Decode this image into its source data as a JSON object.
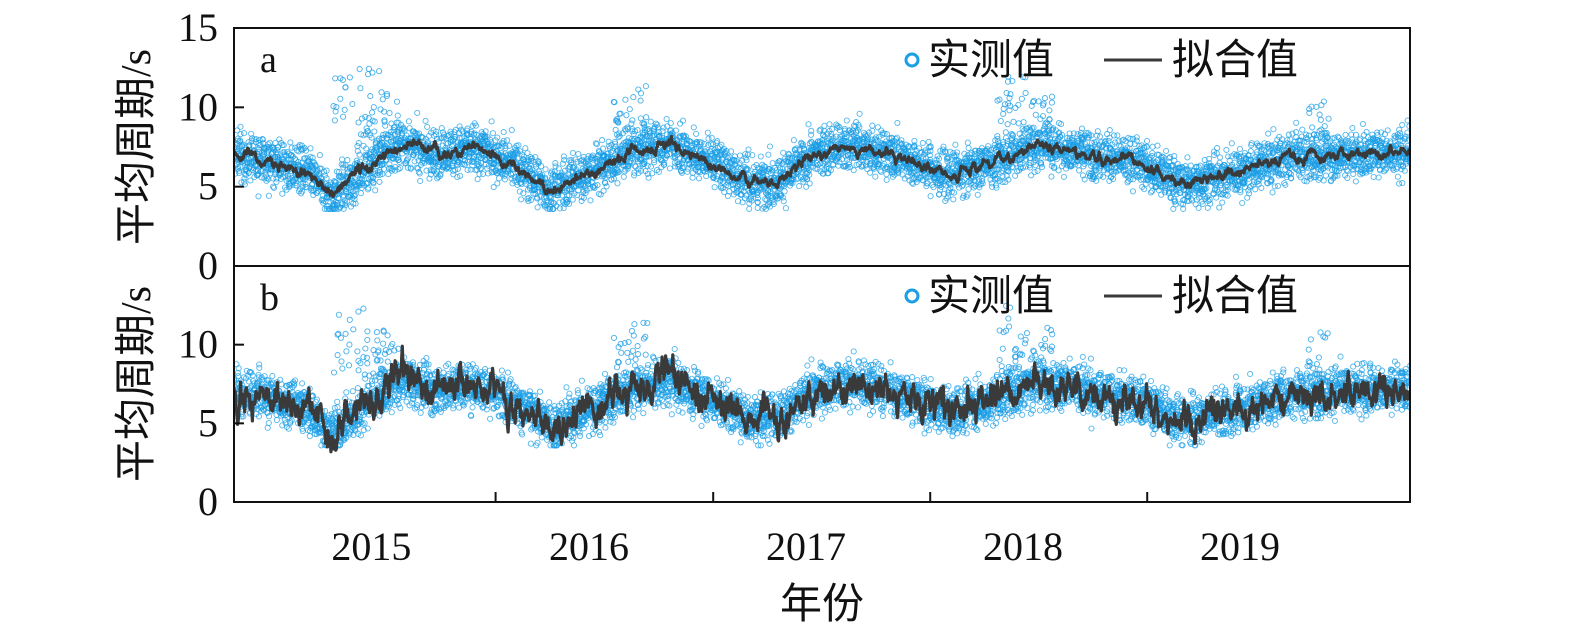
{
  "chart_data": {
    "type": "scatter",
    "xlabel": "年份",
    "ylabel": "平均周期/s",
    "x_tick_labels": [
      "2015",
      "2016",
      "2017",
      "2018",
      "2019"
    ],
    "xlim": [
      "2014-08-01",
      "2019-12-31"
    ],
    "colors": {
      "observed": "#1a9ee6",
      "fitted": "#3a3a3a"
    },
    "panels": [
      {
        "label": "a",
        "ylim": [
          0,
          15
        ],
        "y_ticks": [
          0,
          5,
          10,
          15
        ],
        "series": [
          {
            "name": "实测值",
            "kind": "scatter",
            "description": "daily observed mean period, mostly 4–9 s with spikes up to ~12.5 s"
          },
          {
            "name": "拟合值",
            "kind": "line"
          }
        ],
        "fitted_anchors": [
          {
            "x": "2014-08-01",
            "y": 7.0
          },
          {
            "x": "2014-10-01",
            "y": 6.6
          },
          {
            "x": "2014-12-01",
            "y": 5.9
          },
          {
            "x": "2015-01-15",
            "y": 4.3
          },
          {
            "x": "2015-03-01",
            "y": 6.0
          },
          {
            "x": "2015-05-15",
            "y": 7.8
          },
          {
            "x": "2015-07-01",
            "y": 7.1
          },
          {
            "x": "2015-09-15",
            "y": 7.4
          },
          {
            "x": "2015-11-15",
            "y": 6.4
          },
          {
            "x": "2016-01-15",
            "y": 4.7
          },
          {
            "x": "2016-03-15",
            "y": 5.8
          },
          {
            "x": "2016-06-01",
            "y": 7.2
          },
          {
            "x": "2016-08-01",
            "y": 7.7
          },
          {
            "x": "2016-10-15",
            "y": 6.5
          },
          {
            "x": "2016-12-15",
            "y": 5.3
          },
          {
            "x": "2017-02-01",
            "y": 5.4
          },
          {
            "x": "2017-04-15",
            "y": 7.3
          },
          {
            "x": "2017-06-15",
            "y": 7.6
          },
          {
            "x": "2017-09-01",
            "y": 6.8
          },
          {
            "x": "2017-11-15",
            "y": 5.7
          },
          {
            "x": "2018-02-01",
            "y": 6.6
          },
          {
            "x": "2018-04-15",
            "y": 7.7
          },
          {
            "x": "2018-07-15",
            "y": 7.0
          },
          {
            "x": "2018-10-01",
            "y": 6.5
          },
          {
            "x": "2018-12-15",
            "y": 5.1
          },
          {
            "x": "2019-03-01",
            "y": 5.8
          },
          {
            "x": "2019-06-15",
            "y": 6.9
          },
          {
            "x": "2019-09-15",
            "y": 7.0
          },
          {
            "x": "2019-12-31",
            "y": 7.3
          }
        ]
      },
      {
        "label": "b",
        "ylim": [
          0,
          15
        ],
        "y_ticks": [
          0,
          5,
          10
        ],
        "series": [
          {
            "name": "实测值",
            "kind": "scatter",
            "description": "daily observed mean period, mostly 4–9 s with spikes up to ~12.5 s"
          },
          {
            "name": "拟合值",
            "kind": "line",
            "description": "noisier fit closely tracking observations"
          }
        ],
        "fitted_anchors": [
          {
            "x": "2014-08-01",
            "y": 7.0
          },
          {
            "x": "2014-10-01",
            "y": 6.6
          },
          {
            "x": "2014-12-01",
            "y": 5.9
          },
          {
            "x": "2015-01-15",
            "y": 4.3
          },
          {
            "x": "2015-03-01",
            "y": 6.0
          },
          {
            "x": "2015-05-15",
            "y": 7.8
          },
          {
            "x": "2015-07-01",
            "y": 7.1
          },
          {
            "x": "2015-09-15",
            "y": 7.4
          },
          {
            "x": "2015-11-15",
            "y": 6.4
          },
          {
            "x": "2016-01-15",
            "y": 4.7
          },
          {
            "x": "2016-03-15",
            "y": 5.8
          },
          {
            "x": "2016-06-01",
            "y": 7.2
          },
          {
            "x": "2016-08-01",
            "y": 7.7
          },
          {
            "x": "2016-10-15",
            "y": 6.5
          },
          {
            "x": "2016-12-15",
            "y": 5.3
          },
          {
            "x": "2017-02-01",
            "y": 5.4
          },
          {
            "x": "2017-04-15",
            "y": 7.3
          },
          {
            "x": "2017-06-15",
            "y": 7.6
          },
          {
            "x": "2017-09-01",
            "y": 6.8
          },
          {
            "x": "2017-11-15",
            "y": 5.7
          },
          {
            "x": "2018-02-01",
            "y": 6.6
          },
          {
            "x": "2018-04-15",
            "y": 7.7
          },
          {
            "x": "2018-07-15",
            "y": 7.0
          },
          {
            "x": "2018-10-01",
            "y": 6.5
          },
          {
            "x": "2018-12-15",
            "y": 5.1
          },
          {
            "x": "2019-03-01",
            "y": 5.8
          },
          {
            "x": "2019-06-15",
            "y": 6.9
          },
          {
            "x": "2019-09-15",
            "y": 7.0
          },
          {
            "x": "2019-12-31",
            "y": 7.3
          }
        ]
      }
    ],
    "spikes": [
      {
        "x": "2015-02-01",
        "y": 12.0
      },
      {
        "x": "2015-03-15",
        "y": 12.5
      },
      {
        "x": "2015-03-25",
        "y": 11.5
      },
      {
        "x": "2015-04-20",
        "y": 11.0
      },
      {
        "x": "2016-05-10",
        "y": 10.5
      },
      {
        "x": "2016-06-10",
        "y": 11.5
      },
      {
        "x": "2018-02-20",
        "y": 11.0
      },
      {
        "x": "2018-03-10",
        "y": 12.5
      },
      {
        "x": "2018-04-20",
        "y": 11.2
      },
      {
        "x": "2019-08-01",
        "y": 10.8
      }
    ]
  }
}
